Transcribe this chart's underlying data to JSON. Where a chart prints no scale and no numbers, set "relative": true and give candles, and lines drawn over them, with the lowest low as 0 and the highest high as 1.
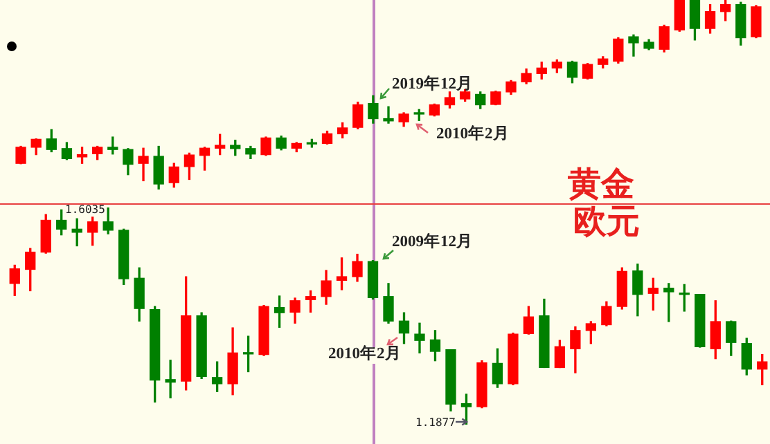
{
  "chart_data": [
    {
      "type": "candlestick",
      "title": "黄金",
      "relative": true,
      "categories": [
        null,
        null,
        null,
        null,
        null,
        null,
        null,
        null,
        null,
        null,
        null,
        null,
        null,
        null,
        null,
        null,
        null,
        null,
        null,
        null,
        null,
        null,
        null,
        null,
        null,
        null,
        null,
        null,
        null,
        null,
        null,
        null,
        null,
        null,
        null,
        null,
        null,
        null,
        null,
        null,
        null,
        null,
        null,
        null,
        null,
        null,
        null,
        null,
        null
      ],
      "ohlc": [
        [
          0.138,
          0.228,
          0.136,
          0.223
        ],
        [
          0.223,
          0.267,
          0.184,
          0.265
        ],
        [
          0.267,
          0.316,
          0.199,
          0.211
        ],
        [
          0.216,
          0.248,
          0.158,
          0.163
        ],
        [
          0.172,
          0.223,
          0.138,
          0.184
        ],
        [
          0.189,
          0.228,
          0.158,
          0.223
        ],
        [
          0.223,
          0.277,
          0.187,
          0.211
        ],
        [
          0.211,
          0.216,
          0.078,
          0.133
        ],
        [
          0.138,
          0.218,
          0.046,
          0.175
        ],
        [
          0.175,
          0.228,
          0,
          0.029
        ],
        [
          0.036,
          0.138,
          0.012,
          0.119
        ],
        [
          0.121,
          0.192,
          0.053,
          0.182
        ],
        [
          0.18,
          0.223,
          0.102,
          0.218
        ],
        [
          0.218,
          0.291,
          0.184,
          0.233
        ],
        [
          0.233,
          0.26,
          0.18,
          0.216
        ],
        [
          0.216,
          0.228,
          0.163,
          0.187
        ],
        [
          0.184,
          0.277,
          0.18,
          0.272
        ],
        [
          0.272,
          0.282,
          0.209,
          0.218
        ],
        [
          0.218,
          0.248,
          0.199,
          0.243
        ],
        [
          0.245,
          0.265,
          0.223,
          0.24
        ],
        [
          0.243,
          0.308,
          0.24,
          0.294
        ],
        [
          0.294,
          0.352,
          0.272,
          0.325
        ],
        [
          0.328,
          0.461,
          0.32,
          0.447
        ],
        [
          0.454,
          0.495,
          0.35,
          0.374
        ],
        [
          0.374,
          0.437,
          0.35,
          0.362
        ],
        [
          0.357,
          0.405,
          0.333,
          0.398
        ],
        [
          0.405,
          0.422,
          0.364,
          0.398
        ],
        [
          0.393,
          0.451,
          0.388,
          0.447
        ],
        [
          0.447,
          0.515,
          0.43,
          0.485
        ],
        [
          0.478,
          0.527,
          0.466,
          0.515
        ],
        [
          0.502,
          0.515,
          0.427,
          0.447
        ],
        [
          0.449,
          0.519,
          0.447,
          0.515
        ],
        [
          0.515,
          0.575,
          0.502,
          0.568
        ],
        [
          0.568,
          0.636,
          0.558,
          0.612
        ],
        [
          0.612,
          0.672,
          0.583,
          0.641
        ],
        [
          0.641,
          0.684,
          0.617,
          0.672
        ],
        [
          0.672,
          0.677,
          0.563,
          0.592
        ],
        [
          0.587,
          0.665,
          0.583,
          0.66
        ],
        [
          0.66,
          0.701,
          0.641,
          0.689
        ],
        [
          0.677,
          0.801,
          0.667,
          0.794
        ],
        [
          0.806,
          0.816,
          0.704,
          0.774
        ],
        [
          0.777,
          0.791,
          0.738,
          0.745
        ],
        [
          0.74,
          0.867,
          0.726,
          0.859
        ],
        [
          0.842,
          1,
          0.835,
          1
        ],
        [
          1,
          1,
          0.789,
          0.85
        ],
        [
          0.85,
          0.976,
          0.825,
          0.939
        ],
        [
          0.939,
          1,
          0.891,
          0.976
        ],
        [
          0.976,
          0.988,
          0.762,
          0.801
        ],
        [
          0.806,
          0.971,
          0.801,
          0.964
        ]
      ],
      "colors": [
        "#ff0000",
        "#ff0000",
        "#008000",
        "#008000",
        "#ff0000",
        "#ff0000",
        "#008000",
        "#008000",
        "#ff0000",
        "#008000",
        "#ff0000",
        "#ff0000",
        "#ff0000",
        "#ff0000",
        "#008000",
        "#008000",
        "#ff0000",
        "#008000",
        "#ff0000",
        "#008000",
        "#ff0000",
        "#ff0000",
        "#ff0000",
        "#008000",
        "#008000",
        "#ff0000",
        "#008000",
        "#ff0000",
        "#ff0000",
        "#ff0000",
        "#008000",
        "#ff0000",
        "#ff0000",
        "#ff0000",
        "#ff0000",
        "#ff0000",
        "#008000",
        "#ff0000",
        "#ff0000",
        "#ff0000",
        "#008000",
        "#008000",
        "#ff0000",
        "#ff0000",
        "#008000",
        "#ff0000",
        "#ff0000",
        "#008000",
        "#ff0000"
      ],
      "annotations": [
        "2019年12月",
        "2010年2月"
      ]
    },
    {
      "type": "candlestick",
      "title": "欧元",
      "categories": [
        null,
        null,
        null,
        null,
        null,
        null,
        null,
        null,
        null,
        null,
        null,
        null,
        null,
        null,
        null,
        null,
        null,
        null,
        null,
        null,
        null,
        null,
        null,
        null,
        null,
        null,
        null,
        null,
        null,
        null,
        null,
        null,
        null,
        null,
        null,
        null,
        null,
        null,
        null,
        null,
        null,
        null,
        null,
        null,
        null,
        null,
        null,
        null,
        null
      ],
      "ohlc": [
        [
          1.458,
          1.493,
          1.435,
          1.486
        ],
        [
          1.485,
          1.525,
          1.444,
          1.518
        ],
        [
          1.518,
          1.59,
          1.516,
          1.579
        ],
        [
          1.579,
          1.599,
          1.551,
          1.562
        ],
        [
          1.562,
          1.582,
          1.53,
          1.556
        ],
        [
          1.556,
          1.585,
          1.531,
          1.576
        ],
        [
          1.576,
          1.6035,
          1.553,
          1.56
        ],
        [
          1.56,
          1.562,
          1.456,
          1.467
        ],
        [
          1.468,
          1.488,
          1.386,
          1.41
        ],
        [
          1.408,
          1.414,
          1.231,
          1.273
        ],
        [
          1.274,
          1.311,
          1.239,
          1.269
        ],
        [
          1.271,
          1.471,
          1.254,
          1.396
        ],
        [
          1.396,
          1.402,
          1.276,
          1.28
        ],
        [
          1.278,
          1.308,
          1.251,
          1.266
        ],
        [
          1.266,
          1.373,
          1.245,
          1.325
        ],
        [
          1.325,
          1.357,
          1.289,
          1.323
        ],
        [
          1.322,
          1.416,
          1.32,
          1.414
        ],
        [
          1.412,
          1.434,
          1.374,
          1.402
        ],
        [
          1.403,
          1.43,
          1.382,
          1.425
        ],
        [
          1.427,
          1.444,
          1.403,
          1.433
        ],
        [
          1.433,
          1.483,
          1.418,
          1.463
        ],
        [
          1.464,
          1.507,
          1.446,
          1.471
        ],
        [
          1.471,
          1.514,
          1.462,
          1.5
        ],
        [
          1.5,
          1.502,
          1.428,
          1.431
        ],
        [
          1.433,
          1.458,
          1.382,
          1.386
        ],
        [
          1.386,
          1.402,
          1.343,
          1.363
        ],
        [
          1.361,
          1.382,
          1.325,
          1.349
        ],
        [
          1.35,
          1.368,
          1.31,
          1.328
        ],
        [
          1.331,
          1.331,
          1.214,
          1.227
        ],
        [
          1.228,
          1.246,
          1.1877,
          1.222
        ],
        [
          1.222,
          1.31,
          1.22,
          1.306
        ],
        [
          1.305,
          1.333,
          1.259,
          1.266
        ],
        [
          1.266,
          1.363,
          1.264,
          1.361
        ],
        [
          1.362,
          1.414,
          1.361,
          1.394
        ],
        [
          1.396,
          1.428,
          1.297,
          1.297
        ],
        [
          1.297,
          1.349,
          1.297,
          1.337
        ],
        [
          1.333,
          1.375,
          1.287,
          1.368
        ],
        [
          1.368,
          1.385,
          1.343,
          1.381
        ],
        [
          1.379,
          1.423,
          1.377,
          1.414
        ],
        [
          1.414,
          1.488,
          1.409,
          1.481
        ],
        [
          1.482,
          1.495,
          1.396,
          1.437
        ],
        [
          1.439,
          1.468,
          1.407,
          1.449
        ],
        [
          1.449,
          1.458,
          1.385,
          1.442
        ],
        [
          1.439,
          1.456,
          1.405,
          1.437
        ],
        [
          1.437,
          1.437,
          1.336,
          1.337
        ],
        [
          1.333,
          1.425,
          1.314,
          1.385
        ],
        [
          1.385,
          1.386,
          1.32,
          1.345
        ],
        [
          1.343,
          1.353,
          1.283,
          1.294
        ],
        [
          1.294,
          1.322,
          1.264,
          1.308
        ]
      ],
      "colors": [
        "#ff0000",
        "#ff0000",
        "#ff0000",
        "#008000",
        "#008000",
        "#ff0000",
        "#008000",
        "#008000",
        "#008000",
        "#008000",
        "#008000",
        "#ff0000",
        "#008000",
        "#008000",
        "#ff0000",
        "#008000",
        "#ff0000",
        "#008000",
        "#ff0000",
        "#ff0000",
        "#ff0000",
        "#ff0000",
        "#ff0000",
        "#008000",
        "#008000",
        "#008000",
        "#008000",
        "#008000",
        "#008000",
        "#008000",
        "#ff0000",
        "#008000",
        "#ff0000",
        "#ff0000",
        "#008000",
        "#ff0000",
        "#ff0000",
        "#ff0000",
        "#ff0000",
        "#ff0000",
        "#008000",
        "#ff0000",
        "#008000",
        "#008000",
        "#008000",
        "#ff0000",
        "#008000",
        "#008000",
        "#ff0000"
      ],
      "annotations": [
        "2009年12月",
        "2010年2月",
        "1.6035",
        "1.1877"
      ],
      "tick_labels": false
    }
  ]
}
